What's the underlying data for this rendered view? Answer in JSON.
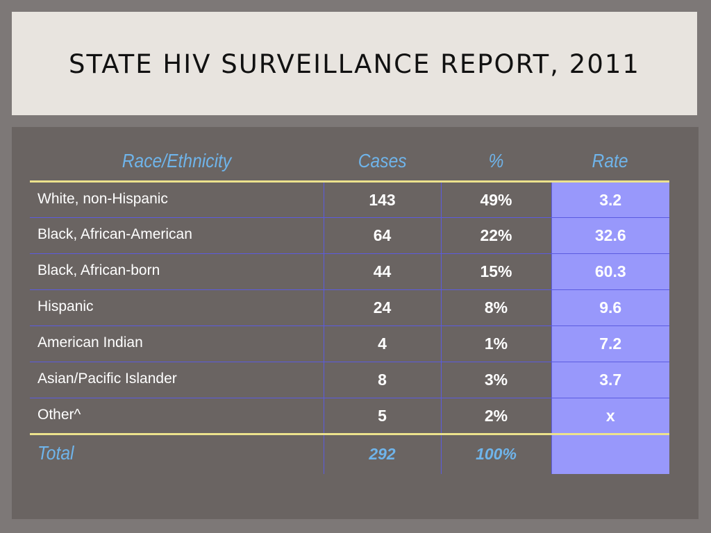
{
  "title": "STATE HIV SURVEILLANCE REPORT, 2011",
  "table": {
    "headers": [
      "Race/Ethnicity",
      "Cases",
      "%",
      "Rate"
    ],
    "rows": [
      {
        "label": "White, non-Hispanic",
        "cases": "143",
        "percent": "49%",
        "rate": "3.2"
      },
      {
        "label": "Black, African-American",
        "cases": "64",
        "percent": "22%",
        "rate": "32.6"
      },
      {
        "label": "Black, African-born",
        "cases": "44",
        "percent": "15%",
        "rate": "60.3"
      },
      {
        "label": "Hispanic",
        "cases": "24",
        "percent": "8%",
        "rate": "9.6"
      },
      {
        "label": "American Indian",
        "cases": "4",
        "percent": "1%",
        "rate": "7.2"
      },
      {
        "label": "Asian/Pacific Islander",
        "cases": "8",
        "percent": "3%",
        "rate": "3.7"
      },
      {
        "label": "Other^",
        "cases": "5",
        "percent": "2%",
        "rate": "x"
      }
    ],
    "total": {
      "label": "Total",
      "cases": "292",
      "percent": "100%",
      "rate": ""
    }
  },
  "colors": {
    "background": "#7d7877",
    "title_panel": "#e8e4df",
    "content_panel": "#6a6462",
    "header_text": "#6fb4ea",
    "rate_column": "#9898fb",
    "divider_yellow": "#ece28d",
    "grid_line": "#5b5be0"
  }
}
